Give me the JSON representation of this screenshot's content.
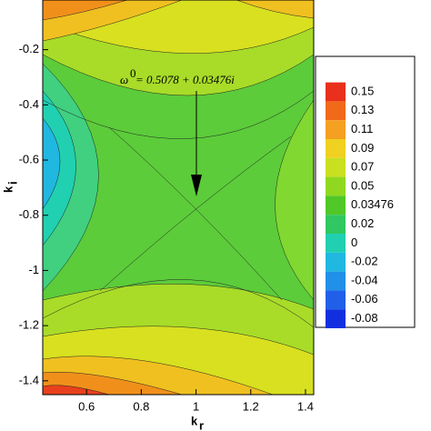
{
  "chart_data": {
    "type": "contour",
    "annotation": {
      "symbol": "ω",
      "superscript": "0",
      "text": " = 0.5078 + 0.03476i"
    },
    "x_label": "k",
    "x_label_sub": "r",
    "y_label": "k",
    "y_label_sub": "i",
    "xlim": [
      0.44,
      1.43
    ],
    "xticks": [
      0.6,
      0.8,
      1,
      1.2,
      1.4
    ],
    "ylim": [
      -1.45,
      -0.02
    ],
    "yticks": [
      -0.2,
      -0.4,
      -0.6,
      -0.8,
      -1,
      -1.2,
      -1.4
    ],
    "colorbar": {
      "ticks": [
        0.15,
        0.13,
        0.11,
        0.09,
        0.07,
        0.05,
        0.03476,
        0.02,
        0,
        -0.02,
        -0.04,
        -0.06,
        -0.08
      ],
      "colors": [
        "#e8301c",
        "#f06a1a",
        "#f5a020",
        "#f0d020",
        "#c8e020",
        "#90d820",
        "#50c828",
        "#30c860",
        "#20d0b0",
        "#20b8e0",
        "#2090e8",
        "#2060e8",
        "#1030e0"
      ]
    }
  }
}
